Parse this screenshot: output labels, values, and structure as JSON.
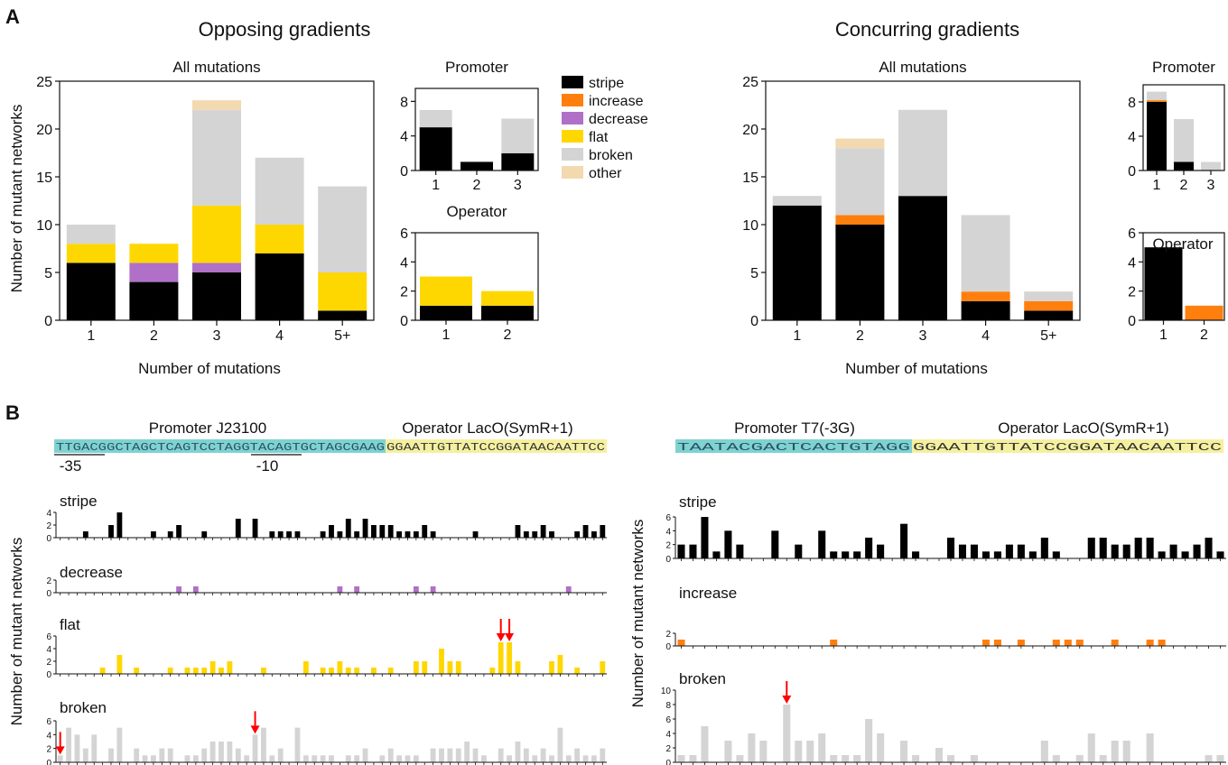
{
  "colors": {
    "stripe": "#000000",
    "increase": "#ff7f0e",
    "decrease": "#b070c8",
    "flat": "#ffd700",
    "broken": "#d4d4d4",
    "other": "#f2d9b0",
    "arrow": "#ff0000",
    "promoter_highlight": "#7ed3cf",
    "operator_highlight": "#f5f0a0"
  },
  "panels": {
    "a": "A",
    "b": "B"
  },
  "chart_data": [
    {
      "id": "opp_all",
      "type": "bar",
      "stacked": true,
      "section_title": "Opposing gradients",
      "title": "All mutations",
      "ylabel": "Number of mutant networks",
      "xlabel": "Number of mutations",
      "ylim": [
        0,
        25
      ],
      "yticks": [
        0,
        5,
        10,
        15,
        20,
        25
      ],
      "categories": [
        "1",
        "2",
        "3",
        "4",
        "5+"
      ],
      "series": [
        {
          "name": "stripe",
          "values": [
            6,
            4,
            5,
            7,
            1
          ]
        },
        {
          "name": "increase",
          "values": [
            0,
            0,
            0,
            0,
            0
          ]
        },
        {
          "name": "decrease",
          "values": [
            0,
            2,
            1,
            0,
            0
          ]
        },
        {
          "name": "flat",
          "values": [
            2,
            2,
            6,
            3,
            4
          ]
        },
        {
          "name": "broken",
          "values": [
            2,
            0,
            10,
            7,
            9
          ]
        },
        {
          "name": "other",
          "values": [
            0,
            0,
            1,
            0,
            0
          ]
        }
      ]
    },
    {
      "id": "opp_prom",
      "type": "bar",
      "stacked": true,
      "title": "Promoter",
      "ylim": [
        0,
        9.5
      ],
      "yticks": [
        0,
        4,
        8
      ],
      "categories": [
        "1",
        "2",
        "3"
      ],
      "series": [
        {
          "name": "stripe",
          "values": [
            5,
            1,
            2
          ]
        },
        {
          "name": "broken",
          "values": [
            2,
            0,
            4
          ]
        }
      ]
    },
    {
      "id": "opp_op",
      "type": "bar",
      "stacked": true,
      "title": "Operator",
      "ylim": [
        0,
        6
      ],
      "yticks": [
        0,
        2,
        4,
        6
      ],
      "categories": [
        "1",
        "2"
      ],
      "series": [
        {
          "name": "stripe",
          "values": [
            1,
            1
          ]
        },
        {
          "name": "flat",
          "values": [
            2,
            1
          ]
        }
      ]
    },
    {
      "id": "con_all",
      "type": "bar",
      "stacked": true,
      "section_title": "Concurring gradients",
      "title": "All mutations",
      "xlabel": "Number of mutations",
      "ylim": [
        0,
        25
      ],
      "yticks": [
        0,
        5,
        10,
        15,
        20,
        25
      ],
      "categories": [
        "1",
        "2",
        "3",
        "4",
        "5+"
      ],
      "series": [
        {
          "name": "stripe",
          "values": [
            12,
            10,
            13,
            2,
            1
          ]
        },
        {
          "name": "increase",
          "values": [
            0,
            1,
            0,
            1,
            1
          ]
        },
        {
          "name": "broken",
          "values": [
            1,
            7,
            9,
            8,
            1
          ]
        },
        {
          "name": "other",
          "values": [
            0,
            1,
            0,
            0,
            0
          ]
        }
      ]
    },
    {
      "id": "con_prom",
      "type": "bar",
      "stacked": true,
      "title": "Promoter",
      "ylim": [
        0,
        10
      ],
      "yticks": [
        0,
        4,
        8
      ],
      "categories": [
        "1",
        "2",
        "3"
      ],
      "series": [
        {
          "name": "stripe",
          "values": [
            8,
            1,
            0
          ]
        },
        {
          "name": "increase",
          "values": [
            0.2,
            0,
            0
          ]
        },
        {
          "name": "broken",
          "values": [
            1,
            5,
            1
          ]
        }
      ]
    },
    {
      "id": "con_op",
      "type": "bar",
      "stacked": true,
      "title": "Operator",
      "ylim": [
        0,
        6
      ],
      "yticks": [
        0,
        2,
        4,
        6
      ],
      "categories": [
        "1",
        "2"
      ],
      "series": [
        {
          "name": "stripe",
          "values": [
            5,
            0
          ]
        },
        {
          "name": "increase",
          "values": [
            0,
            1
          ]
        }
      ]
    },
    {
      "id": "b_left_stripe",
      "type": "bar",
      "title": "stripe",
      "ylim": [
        0,
        4
      ],
      "yticks": [
        0,
        2,
        4
      ],
      "values": [
        0,
        0,
        0,
        1,
        0,
        0,
        2,
        4,
        0,
        0,
        0,
        1,
        0,
        1,
        2,
        0,
        0,
        1,
        0,
        0,
        0,
        3,
        0,
        3,
        0,
        1,
        1,
        1,
        1,
        0,
        0,
        1,
        2,
        1,
        3,
        1,
        3,
        2,
        2,
        2,
        1,
        1,
        1,
        2,
        1,
        0,
        0,
        0,
        0,
        1,
        0,
        0,
        0,
        0,
        2,
        1,
        1,
        2,
        1,
        0,
        0,
        1,
        2,
        1,
        2
      ]
    },
    {
      "id": "b_left_decrease",
      "type": "bar",
      "title": "decrease",
      "ylim": [
        0,
        2
      ],
      "yticks": [
        0,
        2
      ],
      "values": [
        0,
        0,
        0,
        0,
        0,
        0,
        0,
        0,
        0,
        0,
        0,
        0,
        0,
        0,
        1,
        0,
        1,
        0,
        0,
        0,
        0,
        0,
        0,
        0,
        0,
        0,
        0,
        0,
        0,
        0,
        0,
        0,
        0,
        1,
        0,
        1,
        0,
        0,
        0,
        0,
        0,
        0,
        1,
        0,
        1,
        0,
        0,
        0,
        0,
        0,
        0,
        0,
        0,
        0,
        0,
        0,
        0,
        0,
        0,
        0,
        1,
        0,
        0,
        0,
        0
      ]
    },
    {
      "id": "b_left_flat",
      "type": "bar",
      "title": "flat",
      "ylim": [
        0,
        6
      ],
      "yticks": [
        0,
        2,
        4,
        6
      ],
      "values": [
        0,
        0,
        0,
        0,
        0,
        1,
        0,
        3,
        0,
        1,
        0,
        0,
        0,
        1,
        0,
        1,
        1,
        1,
        2,
        1,
        2,
        0,
        0,
        0,
        1,
        0,
        0,
        0,
        0,
        2,
        0,
        1,
        1,
        2,
        1,
        1,
        0,
        1,
        0,
        1,
        0,
        0,
        2,
        2,
        0,
        4,
        2,
        2,
        0,
        0,
        0,
        1,
        5,
        5,
        2,
        0,
        0,
        0,
        2,
        3,
        0,
        1,
        0,
        0,
        2
      ]
    },
    {
      "id": "b_left_broken",
      "type": "bar",
      "title": "broken",
      "ylim": [
        0,
        6
      ],
      "yticks": [
        0,
        2,
        4,
        6
      ],
      "arrows_at": [
        0,
        23
      ],
      "values": [
        1,
        5,
        4,
        2,
        4,
        0,
        2,
        5,
        0,
        2,
        1,
        1,
        2,
        2,
        0,
        1,
        1,
        2,
        3,
        3,
        3,
        2,
        1,
        4,
        5,
        1,
        2,
        0,
        5,
        1,
        1,
        1,
        1,
        0,
        1,
        1,
        2,
        0,
        1,
        2,
        1,
        1,
        1,
        0,
        2,
        2,
        2,
        2,
        3,
        2,
        1,
        0,
        2,
        1,
        3,
        2,
        1,
        2,
        1,
        5,
        1,
        2,
        1,
        1,
        2
      ]
    },
    {
      "id": "b_right_stripe",
      "type": "bar",
      "title": "stripe",
      "ylim": [
        0,
        6
      ],
      "yticks": [
        0,
        2,
        4,
        6
      ],
      "values": [
        2,
        2,
        6,
        1,
        4,
        2,
        0,
        0,
        4,
        0,
        2,
        0,
        4,
        1,
        1,
        1,
        3,
        2,
        0,
        5,
        1,
        0,
        0,
        3,
        2,
        2,
        1,
        1,
        2,
        2,
        1,
        3,
        1,
        0,
        0,
        3,
        3,
        2,
        2,
        3,
        3,
        1,
        2,
        1,
        2,
        3,
        1
      ]
    },
    {
      "id": "b_right_increase",
      "type": "bar",
      "title": "increase",
      "ylim": [
        0,
        2
      ],
      "yticks": [
        0,
        2
      ],
      "values": [
        1,
        0,
        0,
        0,
        0,
        0,
        0,
        0,
        0,
        0,
        0,
        0,
        0,
        1,
        0,
        0,
        0,
        0,
        0,
        0,
        0,
        0,
        0,
        0,
        0,
        0,
        1,
        1,
        0,
        1,
        0,
        0,
        1,
        1,
        1,
        0,
        0,
        1,
        0,
        0,
        1,
        1,
        0,
        0,
        0,
        0,
        0
      ]
    },
    {
      "id": "b_right_broken",
      "type": "bar",
      "title": "broken",
      "ylim": [
        0,
        10
      ],
      "yticks": [
        0,
        2,
        4,
        6,
        8,
        10
      ],
      "arrows_at": [
        9
      ],
      "values": [
        1,
        1,
        5,
        0,
        3,
        1,
        4,
        3,
        0,
        8,
        3,
        3,
        4,
        1,
        1,
        1,
        6,
        4,
        0,
        3,
        1,
        0,
        2,
        1,
        0,
        1,
        0,
        0,
        0,
        0,
        0,
        3,
        1,
        0,
        1,
        4,
        1,
        3,
        3,
        0,
        4,
        0,
        0,
        0,
        0,
        1,
        1
      ]
    }
  ],
  "legend": [
    "stripe",
    "increase",
    "decrease",
    "flat",
    "broken",
    "other"
  ],
  "panel_b": {
    "left": {
      "promoter_label": "Promoter J23100",
      "operator_label": "Operator LacO(SymR+1)",
      "promoter_seq": "TTGACGGCTAGCTCAGTCCTAGGTACAGTGCTAGCGAAG",
      "operator_seq": "GGAATTGTTATCCGGATAACAATTCC",
      "box_35": "-35",
      "box_10": "-10"
    },
    "right": {
      "promoter_label": "Promoter T7(-3G)",
      "operator_label": "Operator LacO(SymR+1)",
      "promoter_seq": "TAATACGACTCACTGTAGG",
      "operator_seq": "GGAATTGTTATCCGGATAACAATTCC"
    },
    "ylabel": "Number of mutant networks"
  }
}
